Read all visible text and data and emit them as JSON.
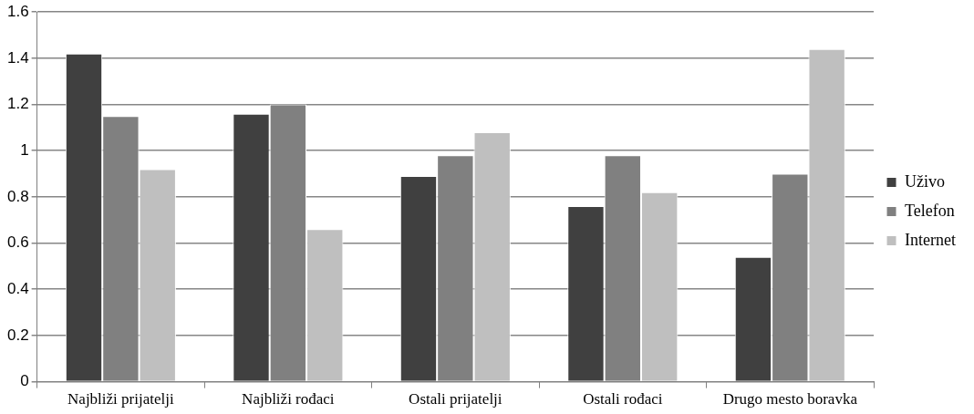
{
  "chart_data": {
    "type": "bar",
    "categories": [
      "Najbliži prijatelji",
      "Najbliži rođaci",
      "Ostali prijatelji",
      "Ostali rođaci",
      "Drugo mesto boravka"
    ],
    "series": [
      {
        "name": "Uživo",
        "color": "#404040",
        "values": [
          1.42,
          1.16,
          0.89,
          0.76,
          0.54
        ]
      },
      {
        "name": "Telefon",
        "color": "#808080",
        "values": [
          1.15,
          1.2,
          0.98,
          0.98,
          0.9
        ]
      },
      {
        "name": "Internet",
        "color": "#bfbfbf",
        "values": [
          0.92,
          0.66,
          1.08,
          0.82,
          1.44
        ]
      }
    ],
    "ylim": [
      0,
      1.6
    ],
    "yticks": [
      0,
      0.2,
      0.4,
      0.6,
      0.8,
      1,
      1.2,
      1.4,
      1.6
    ],
    "grid": "y",
    "legend": "right"
  }
}
